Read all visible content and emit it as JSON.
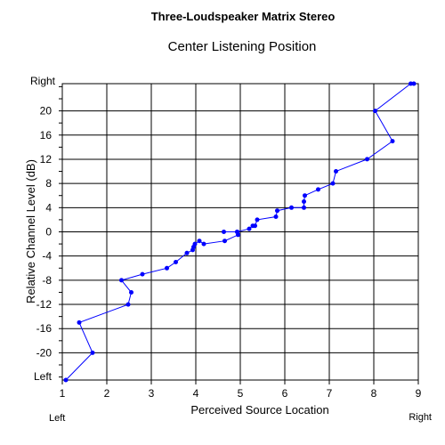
{
  "chart_data": {
    "type": "line",
    "title": "Three-Loudspeaker Matrix Stereo",
    "subtitle": "Center Listening Position",
    "xlabel": "Perceived Source Location",
    "ylabel": "Relative Channel Level (dB)",
    "xlim": [
      1,
      9
    ],
    "ylim": [
      -24.5,
      24.5
    ],
    "x_ticks": [
      1,
      2,
      3,
      4,
      5,
      6,
      7,
      8,
      9
    ],
    "y_ticks": [
      -20,
      -16,
      -12,
      -8,
      -4,
      0,
      4,
      8,
      12,
      16,
      20
    ],
    "y_end_labels": {
      "top": "Right",
      "bottom": "Left"
    },
    "x_end_labels": {
      "left": "Left",
      "right": "Right"
    },
    "grid": true,
    "line_color": "#0000ff",
    "series": [
      {
        "x": [
          1.08,
          1.68,
          1.38,
          2.48,
          2.55,
          2.33,
          2.8,
          3.35,
          3.55,
          3.8,
          3.93,
          3.95,
          3.98,
          4.08,
          4.18,
          4.65,
          4.95,
          4.93,
          4.63,
          4.93,
          5.2,
          5.28,
          5.33,
          5.38,
          5.8,
          5.83,
          6.15,
          6.43,
          6.43,
          6.45,
          6.75,
          7.08,
          7.15,
          7.85,
          8.42,
          8.03,
          8.83,
          8.9
        ],
        "y": [
          -24.5,
          -20,
          -15,
          -12,
          -10,
          -8,
          -7,
          -6,
          -5,
          -3.5,
          -3,
          -2.5,
          -2,
          -1.5,
          -2,
          -1.5,
          -0.5,
          0,
          0,
          0,
          0.5,
          1,
          1,
          2,
          2.5,
          3.5,
          4,
          4,
          5,
          6,
          7,
          8,
          10,
          12,
          15,
          20,
          24.5,
          24.5
        ]
      }
    ]
  }
}
